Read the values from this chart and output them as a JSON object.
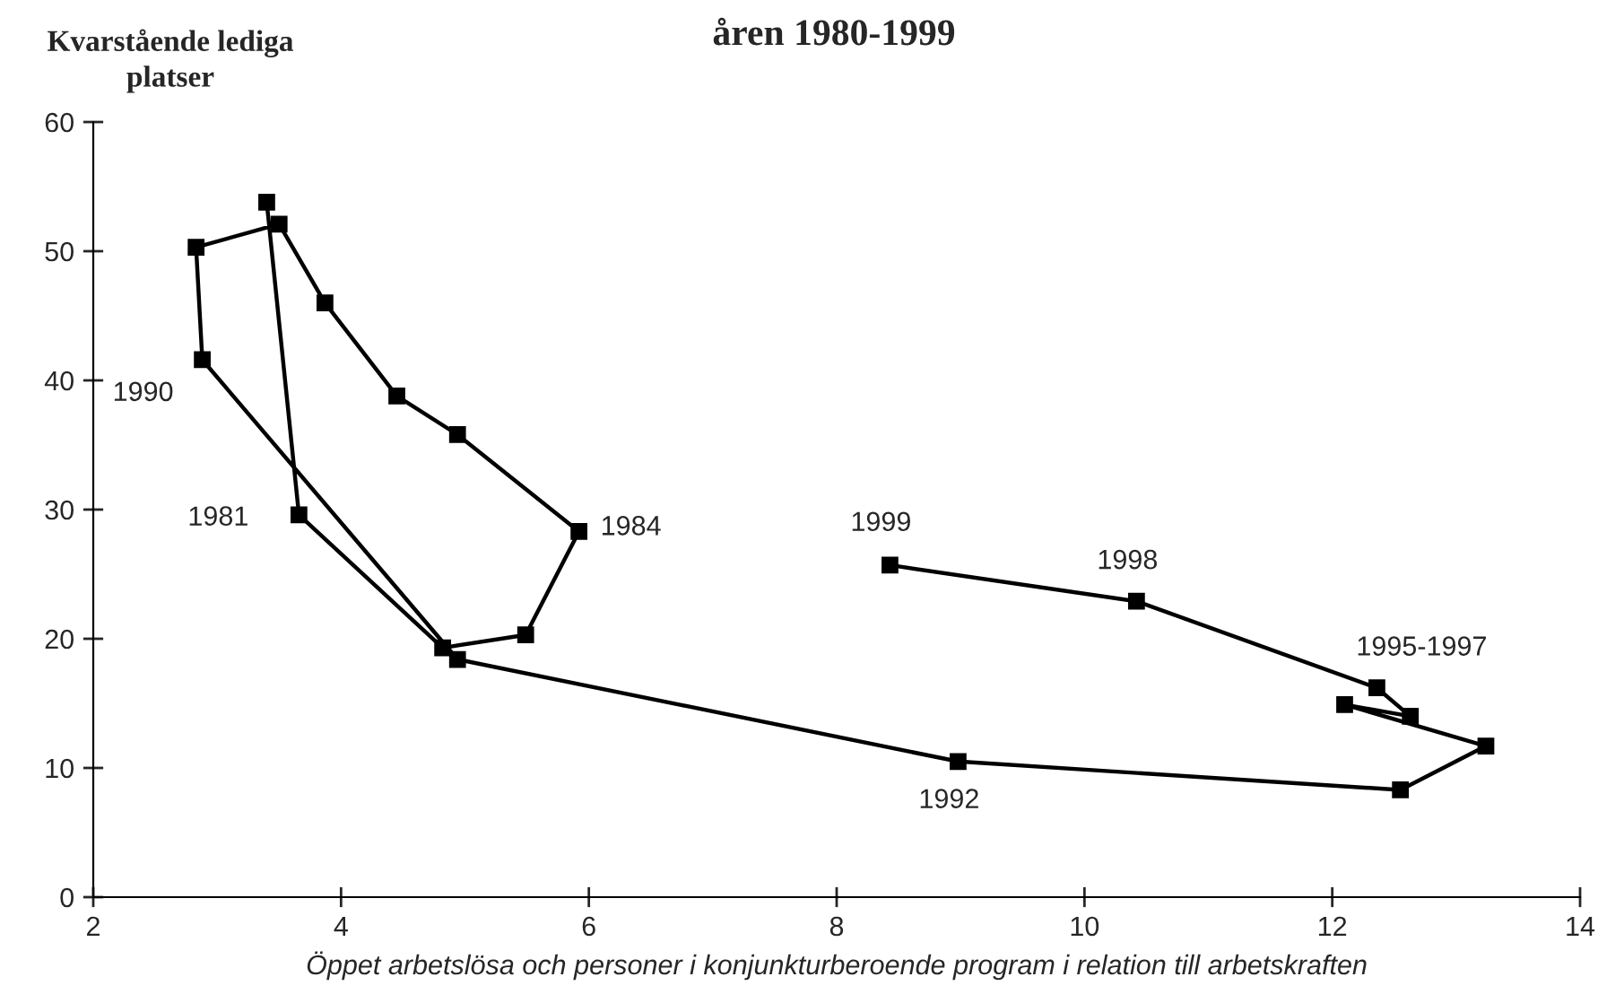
{
  "chart_data": {
    "type": "line",
    "title": "åren 1980-1999",
    "ylabel": "Kvarstående lediga\nplatser",
    "xlabel": "Öppet arbetslösa och personer i konjunkturberoende program i relation till arbetskraften",
    "series": [
      {
        "color": "#000000",
        "x": [
          3.4,
          3.66,
          4.82,
          5.49,
          5.92,
          4.94,
          4.45,
          3.87,
          3.5,
          2.83,
          2.88,
          4.94,
          8.98,
          12.55,
          13.24,
          12.1,
          12.63,
          12.36,
          10.42,
          8.43
        ],
        "values": [
          53.8,
          29.6,
          19.3,
          20.3,
          28.3,
          35.8,
          38.8,
          46.0,
          52.1,
          50.3,
          41.6,
          18.4,
          10.5,
          8.3,
          11.7,
          14.9,
          14.0,
          16.2,
          22.9,
          25.7
        ]
      }
    ],
    "xlim": [
      2,
      14
    ],
    "xticks": [
      2,
      4,
      6,
      8,
      10,
      12,
      14
    ],
    "ylim": [
      0,
      60
    ],
    "yticks": [
      0,
      10,
      20,
      30,
      40,
      50,
      60
    ],
    "marker": "square",
    "line_style": "solid",
    "grid": false,
    "legend": false,
    "annotations": [
      {
        "text": "1990",
        "x": 2.88,
        "y": 41.6
      },
      {
        "text": "1981",
        "x": 3.66,
        "y": 29.6
      },
      {
        "text": "1984",
        "x": 5.92,
        "y": 28.3
      },
      {
        "text": "1999",
        "x": 8.43,
        "y": 25.7
      },
      {
        "text": "1998",
        "x": 10.42,
        "y": 22.9
      },
      {
        "text": "1995-1997",
        "x": 12.36,
        "y": 16.2
      },
      {
        "text": "1992",
        "x": 8.98,
        "y": 10.5
      }
    ]
  }
}
